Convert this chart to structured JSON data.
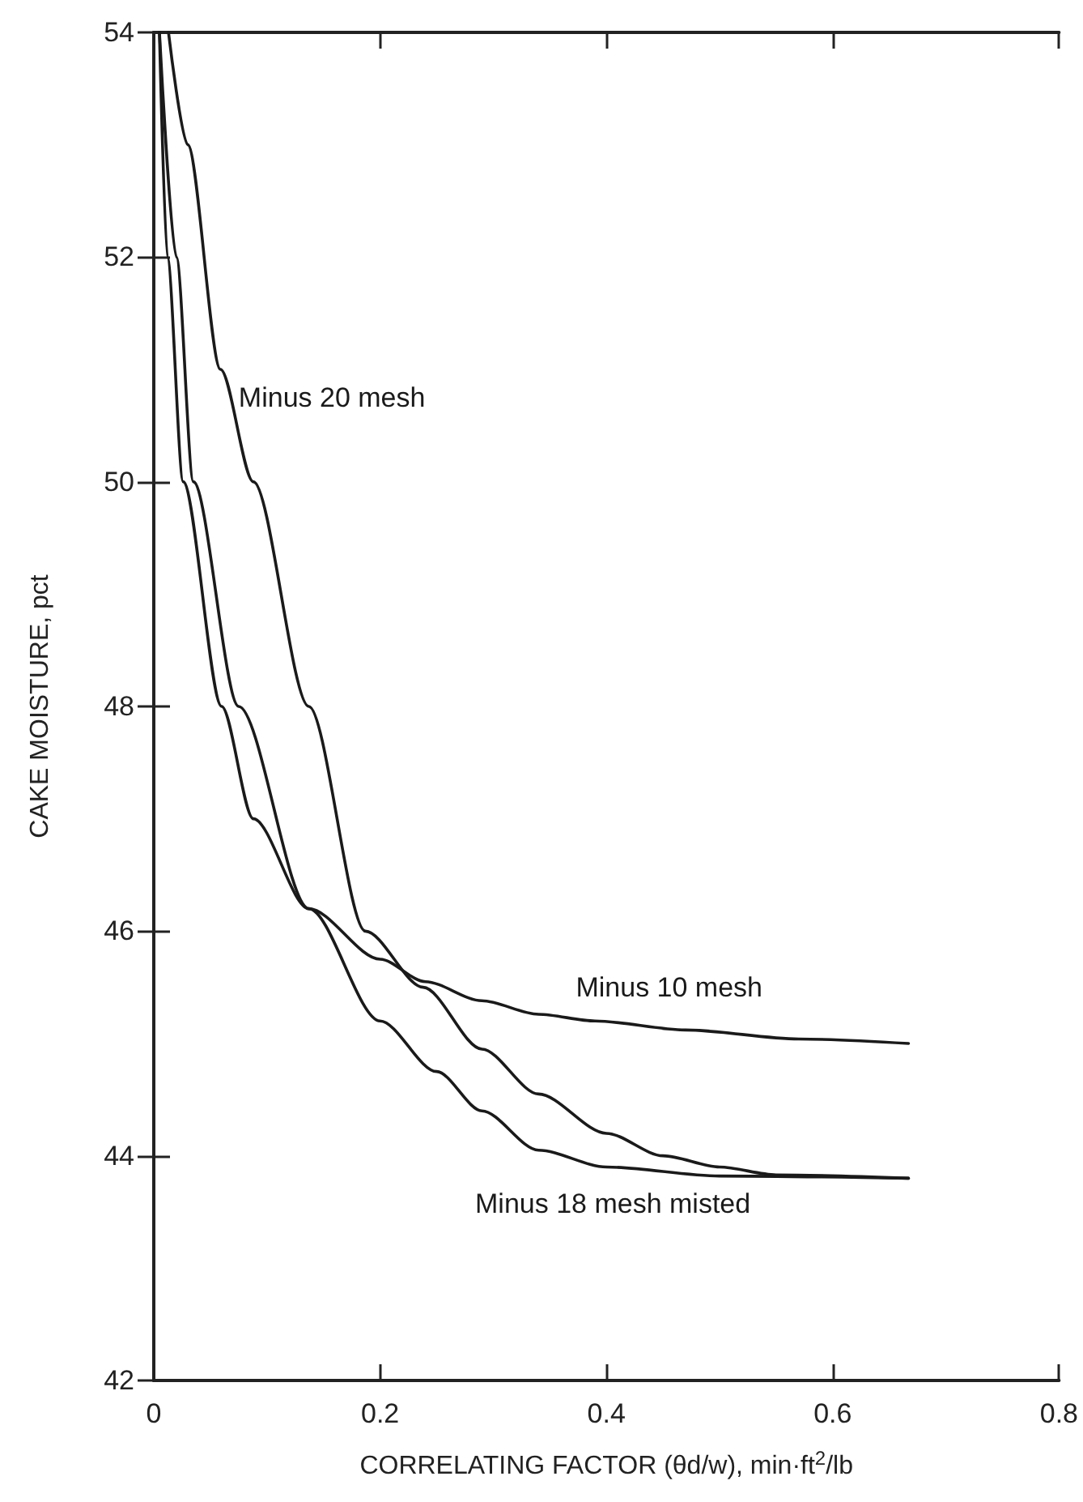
{
  "chart_data": {
    "type": "line",
    "xlabel": "CORRELATING FACTOR (θd/w), min·ft$^{2}$/lb",
    "ylabel": "CAKE MOISTURE, pct",
    "xlim": [
      0,
      0.8
    ],
    "xticks": [
      0,
      0.2,
      0.4,
      0.6,
      0.8
    ],
    "ylim": [
      42,
      54
    ],
    "yticks": [
      42,
      44,
      46,
      48,
      50,
      52,
      54
    ],
    "grid": false,
    "legend": false,
    "marker": "none",
    "line_style": "solid",
    "series": [
      {
        "name": "Minus 20 mesh",
        "color": "#1a1a1a",
        "x": [
          0.013,
          0.03,
          0.059,
          0.088,
          0.137,
          0.187,
          0.238,
          0.29,
          0.34,
          0.4,
          0.45,
          0.5,
          0.55,
          0.667
        ],
        "values": [
          54,
          53,
          51,
          50,
          48,
          46,
          45.5,
          44.95,
          44.55,
          44.2,
          44.0,
          43.9,
          43.83,
          43.8
        ]
      },
      {
        "name": "Minus 10 mesh",
        "color": "#1a1a1a",
        "x": [
          0.005,
          0.012,
          0.026,
          0.06,
          0.088,
          0.137,
          0.2,
          0.24,
          0.29,
          0.34,
          0.39,
          0.47,
          0.57,
          0.667
        ],
        "values": [
          54,
          52,
          50,
          48,
          47,
          46.2,
          45.75,
          45.55,
          45.38,
          45.26,
          45.2,
          45.12,
          45.04,
          45.0
        ]
      },
      {
        "name": "Minus 18 mesh misted",
        "color": "#1a1a1a",
        "x": [
          0.005,
          0.02,
          0.035,
          0.075,
          0.137,
          0.2,
          0.25,
          0.29,
          0.34,
          0.4,
          0.5,
          0.667
        ],
        "values": [
          54,
          52,
          50,
          48,
          46.2,
          45.2,
          44.75,
          44.4,
          44.05,
          43.9,
          43.82,
          43.8
        ]
      }
    ]
  }
}
